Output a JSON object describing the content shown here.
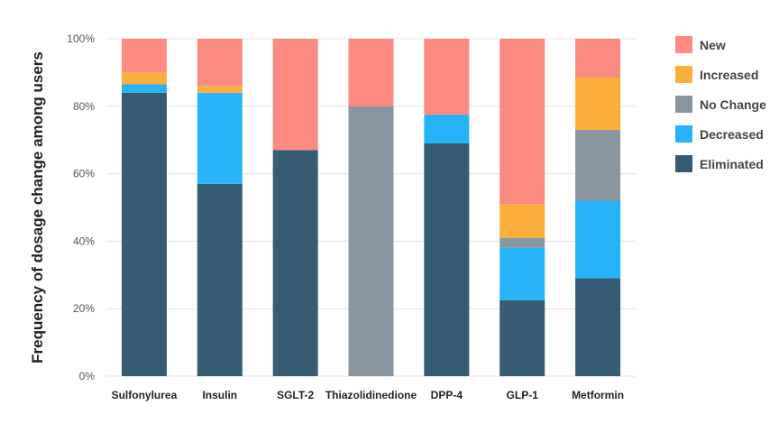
{
  "chart_data": {
    "type": "bar",
    "stacked": true,
    "categories": [
      "Sulfonylurea",
      "Insulin",
      "SGLT-2",
      "Thiazolidinedione",
      "DPP-4",
      "GLP-1",
      "Metformin"
    ],
    "series": [
      {
        "name": "Eliminated",
        "color": "#355c73",
        "values": [
          84,
          57,
          67,
          0,
          69,
          22.5,
          29
        ]
      },
      {
        "name": "Decreased",
        "color": "#27b3f7",
        "values": [
          2.5,
          27,
          0,
          0,
          8.5,
          15.5,
          23
        ]
      },
      {
        "name": "No Change",
        "color": "#8a969f",
        "values": [
          0,
          0,
          0,
          80,
          0,
          3,
          21
        ]
      },
      {
        "name": "Increased",
        "color": "#fbae3c",
        "values": [
          3.5,
          2,
          0,
          0,
          0,
          10,
          15.5
        ]
      },
      {
        "name": "New",
        "color": "#fb8a80",
        "values": [
          10,
          14,
          33,
          20,
          22.5,
          49,
          11.5
        ]
      }
    ],
    "legend_order": [
      "New",
      "Increased",
      "No Change",
      "Decreased",
      "Eliminated"
    ],
    "ylabel": "Frequency of dosage change among users",
    "xlabel": "",
    "ylim": [
      0,
      100
    ],
    "yticks": [
      "0%",
      "20%",
      "40%",
      "60%",
      "80%",
      "100%"
    ],
    "grid": true,
    "legend_position": "right"
  }
}
